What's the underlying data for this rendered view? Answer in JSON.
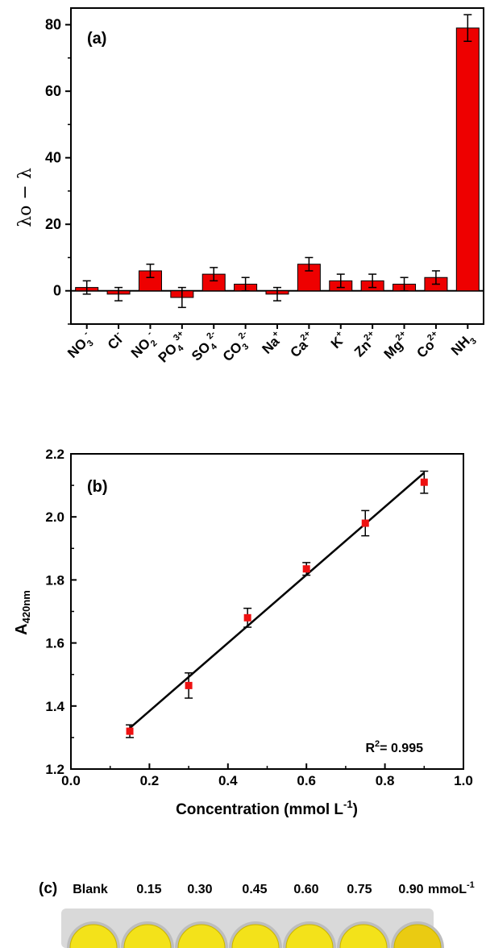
{
  "colors": {
    "bar": "#ee0000",
    "marker": "#ee1111",
    "well": "#f3e21a",
    "well_dark": "#eacb12",
    "plate": "#d9d9d9"
  },
  "chart_data": [
    {
      "type": "bar",
      "panel_label": "(a)",
      "ylabel": "λo − λ",
      "ylim": [
        -10,
        85
      ],
      "yticks": [
        "0",
        "20",
        "40",
        "60",
        "80"
      ],
      "categories": [
        {
          "base": "NO",
          "sub": "3",
          "sup": "-"
        },
        {
          "base": "Cl",
          "sub": "",
          "sup": "-"
        },
        {
          "base": "NO",
          "sub": "2",
          "sup": "-"
        },
        {
          "base": "PO",
          "sub": "4",
          "sup": "3+"
        },
        {
          "base": "SO",
          "sub": "4",
          "sup": "2-"
        },
        {
          "base": "CO",
          "sub": "3",
          "sup": "2-"
        },
        {
          "base": "Na",
          "sub": "",
          "sup": "+"
        },
        {
          "base": "Ca",
          "sub": "",
          "sup": "2+"
        },
        {
          "base": "K",
          "sub": "",
          "sup": "+"
        },
        {
          "base": "Zn",
          "sub": "",
          "sup": "2+"
        },
        {
          "base": "Mg",
          "sub": "",
          "sup": "2+"
        },
        {
          "base": "Co",
          "sub": "",
          "sup": "2+"
        },
        {
          "base": "NH",
          "sub": "3",
          "sup": ""
        }
      ],
      "values": [
        1,
        -1,
        6,
        -2,
        5,
        2,
        -1,
        8,
        3,
        3,
        2,
        4,
        79
      ],
      "errors": [
        2,
        2,
        2,
        3,
        2,
        2,
        2,
        2,
        2,
        2,
        2,
        2,
        4
      ]
    },
    {
      "type": "scatter",
      "panel_label": "(b)",
      "xlabel": "Concentration (mmol L",
      "xlabel_sup": "-1",
      "xlabel_end": ")",
      "ylabel": "A",
      "ylabel_sub": "420nm",
      "xlim": [
        0.0,
        1.0
      ],
      "ylim": [
        1.2,
        2.2
      ],
      "xticks": [
        "0.0",
        "0.2",
        "0.4",
        "0.6",
        "0.8",
        "1.0"
      ],
      "yticks": [
        "1.2",
        "1.4",
        "1.6",
        "1.8",
        "2.0",
        "2.2"
      ],
      "x": [
        0.15,
        0.3,
        0.45,
        0.6,
        0.75,
        0.9
      ],
      "y": [
        1.32,
        1.465,
        1.68,
        1.835,
        1.98,
        2.11
      ],
      "errors": [
        0.02,
        0.04,
        0.03,
        0.02,
        0.04,
        0.035
      ],
      "fit_line": {
        "x": [
          0.15,
          0.9
        ],
        "y": [
          1.33,
          2.14
        ]
      },
      "annotation": "R",
      "annotation_sup": "2",
      "annotation_end": "= 0.995"
    }
  ],
  "panel_c": {
    "label": "(c)",
    "headers": [
      "Blank",
      "0.15",
      "0.30",
      "0.45",
      "0.60",
      "0.75",
      "0.90"
    ],
    "unit": "mmoL",
    "unit_sup": "-1"
  }
}
